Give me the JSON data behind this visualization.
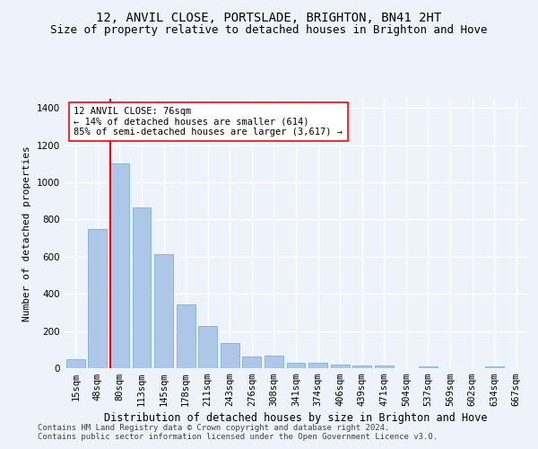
{
  "title": "12, ANVIL CLOSE, PORTSLADE, BRIGHTON, BN41 2HT",
  "subtitle": "Size of property relative to detached houses in Brighton and Hove",
  "xlabel": "Distribution of detached houses by size in Brighton and Hove",
  "ylabel": "Number of detached properties",
  "footer1": "Contains HM Land Registry data © Crown copyright and database right 2024.",
  "footer2": "Contains public sector information licensed under the Open Government Licence v3.0.",
  "categories": [
    "15sqm",
    "48sqm",
    "80sqm",
    "113sqm",
    "145sqm",
    "178sqm",
    "211sqm",
    "243sqm",
    "276sqm",
    "308sqm",
    "341sqm",
    "374sqm",
    "406sqm",
    "439sqm",
    "471sqm",
    "504sqm",
    "537sqm",
    "569sqm",
    "602sqm",
    "634sqm",
    "667sqm"
  ],
  "values": [
    50,
    750,
    1100,
    865,
    615,
    345,
    225,
    135,
    65,
    70,
    30,
    30,
    20,
    15,
    15,
    0,
    10,
    0,
    0,
    10,
    0
  ],
  "bar_color": "#aec6e8",
  "bar_edge_color": "#6aaad4",
  "vline_color": "red",
  "annotation_text": "12 ANVIL CLOSE: 76sqm\n← 14% of detached houses are smaller (614)\n85% of semi-detached houses are larger (3,617) →",
  "annotation_box_color": "white",
  "annotation_box_edge_color": "red",
  "ylim": [
    0,
    1450
  ],
  "yticks": [
    0,
    200,
    400,
    600,
    800,
    1000,
    1200,
    1400
  ],
  "background_color": "#eef2fa",
  "grid_color": "white",
  "title_fontsize": 10,
  "subtitle_fontsize": 9,
  "ylabel_fontsize": 8,
  "xlabel_fontsize": 8.5,
  "tick_fontsize": 7.5,
  "annotation_fontsize": 7.5,
  "footer_fontsize": 6.5
}
